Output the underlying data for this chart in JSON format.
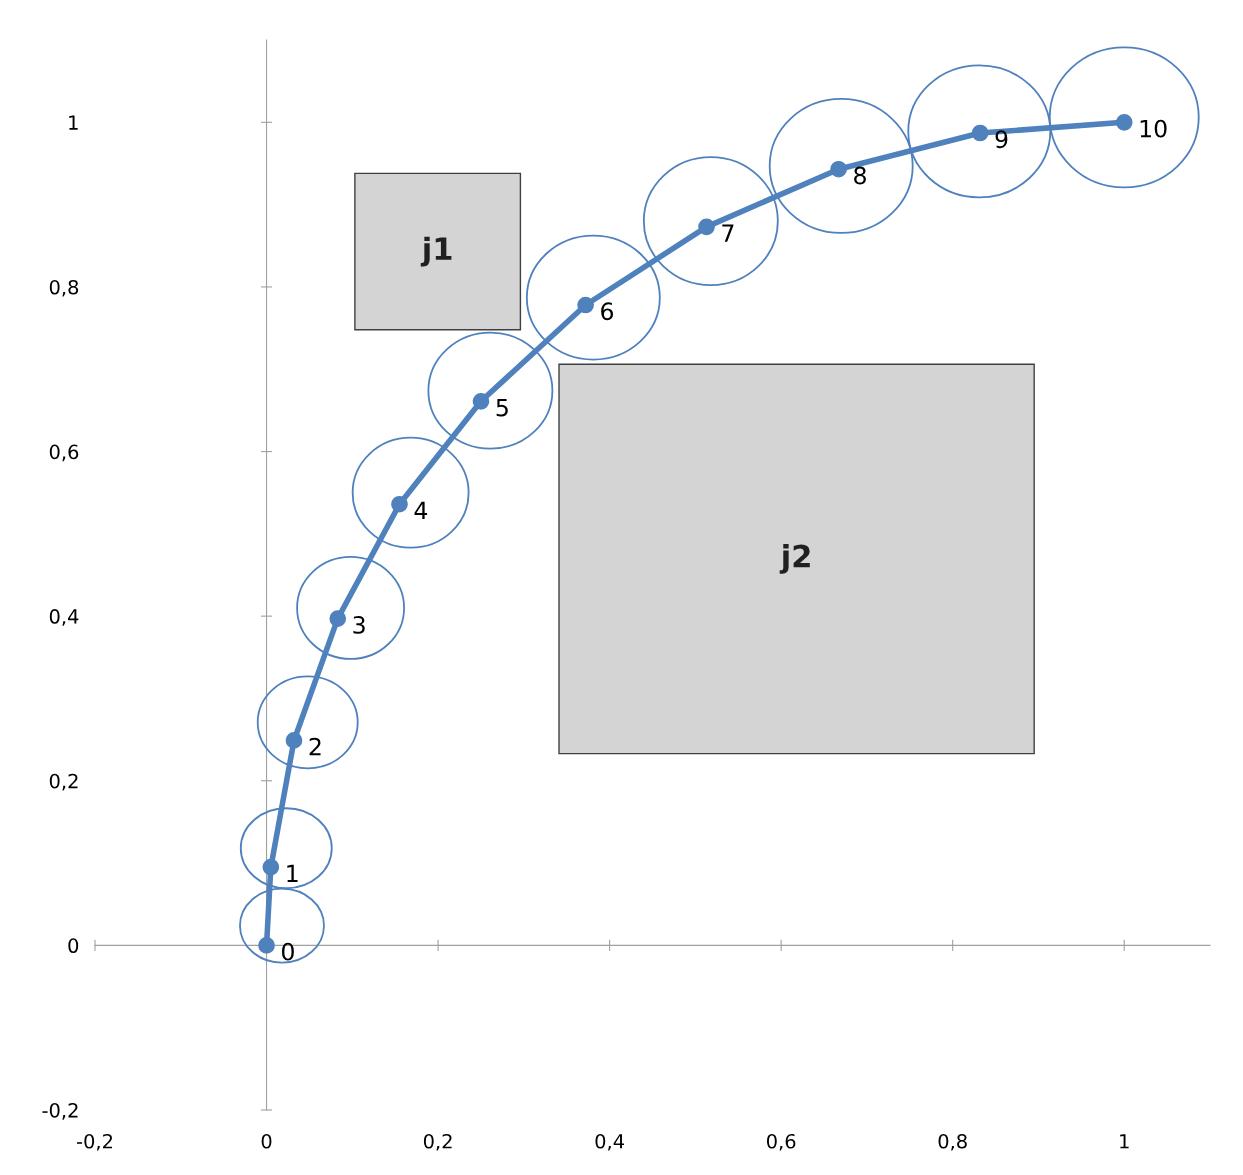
{
  "chart_data": {
    "type": "line",
    "xlim": [
      -0.2,
      1.1
    ],
    "ylim": [
      -0.2,
      1.1
    ],
    "xticks": [
      {
        "value": -0.2,
        "label": "-0,2"
      },
      {
        "value": 0,
        "label": "0"
      },
      {
        "value": 0.2,
        "label": "0,2"
      },
      {
        "value": 0.4,
        "label": "0,4"
      },
      {
        "value": 0.6,
        "label": "0,6"
      },
      {
        "value": 0.8,
        "label": "0,8"
      },
      {
        "value": 1,
        "label": "1"
      }
    ],
    "yticks": [
      {
        "value": -0.2,
        "label": "-0,2"
      },
      {
        "value": 0,
        "label": "0"
      },
      {
        "value": 0.2,
        "label": "0,2"
      },
      {
        "value": 0.4,
        "label": "0,4"
      },
      {
        "value": 0.6,
        "label": "0,6"
      },
      {
        "value": 0.8,
        "label": "0,8"
      },
      {
        "value": 1,
        "label": "1"
      }
    ],
    "legend": false,
    "series": [
      {
        "color": "#4f81bd",
        "marker": "circle",
        "line_style": "solid",
        "x": [
          0,
          0.005,
          0.032,
          0.083,
          0.155,
          0.25,
          0.372,
          0.513,
          0.667,
          0.832,
          1.0
        ],
        "values": [
          0,
          0.095,
          0.249,
          0.397,
          0.536,
          0.661,
          0.778,
          0.873,
          0.943,
          0.987,
          1.0
        ]
      }
    ],
    "annotations": [
      "j1",
      "j2",
      {
        "text": "0",
        "x": 0,
        "y": 0
      },
      {
        "text": "1",
        "x": 0.005,
        "y": 0.095
      },
      {
        "text": "2",
        "x": 0.032,
        "y": 0.249
      },
      {
        "text": "3",
        "x": 0.083,
        "y": 0.397
      },
      {
        "text": "4",
        "x": 0.155,
        "y": 0.536
      },
      {
        "text": "5",
        "x": 0.25,
        "y": 0.661
      },
      {
        "text": "6",
        "x": 0.372,
        "y": 0.778
      },
      {
        "text": "7",
        "x": 0.513,
        "y": 0.873
      },
      {
        "text": "8",
        "x": 0.667,
        "y": 0.943
      },
      {
        "text": "9",
        "x": 0.832,
        "y": 0.987
      },
      {
        "text": "10",
        "x": 1.0,
        "y": 1.0
      }
    ]
  }
}
